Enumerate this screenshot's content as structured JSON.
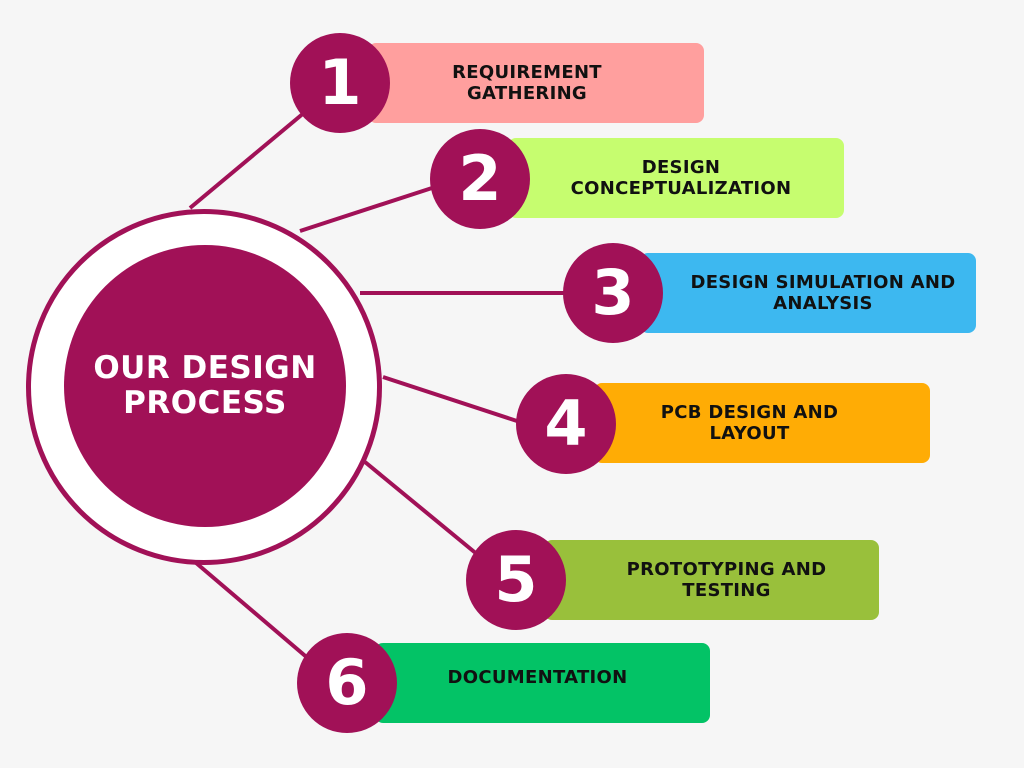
{
  "title": "OUR DESIGN PROCESS",
  "colors": {
    "accent": "#a11157",
    "background": "#f6f6f6"
  },
  "steps": [
    {
      "number": "1",
      "label": "REQUIREMENT GATHERING",
      "color": "#ff9f9e"
    },
    {
      "number": "2",
      "label": "DESIGN CONCEPTUALIZATION",
      "color": "#c6fd6f"
    },
    {
      "number": "3",
      "label": "DESIGN SIMULATION AND ANALYSIS",
      "color": "#3db8f0"
    },
    {
      "number": "4",
      "label": "PCB DESIGN AND LAYOUT",
      "color": "#ffac05"
    },
    {
      "number": "5",
      "label": "PROTOTYPING AND TESTING",
      "color": "#99c03b"
    },
    {
      "number": "6",
      "label": "DOCUMENTATION",
      "color": "#03c366"
    }
  ]
}
